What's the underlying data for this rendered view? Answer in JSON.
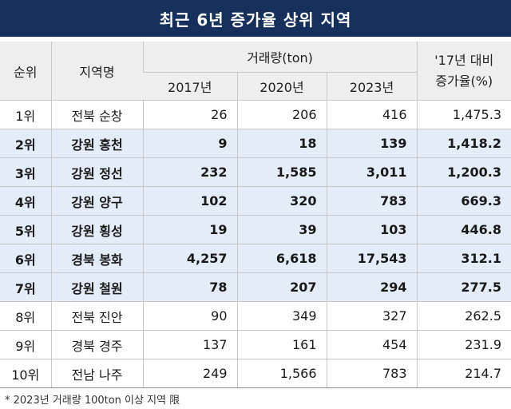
{
  "title": "최근 6년 증가율 상위 지역",
  "headers": {
    "rank": "순위",
    "region": "지역명",
    "volume": "거래량(ton)",
    "years": [
      "2017년",
      "2020년",
      "2023년"
    ],
    "rate_line1": "'17년 대비",
    "rate_line2": "증가율(%)"
  },
  "rows": [
    {
      "rank": "1위",
      "region": "전북 순창",
      "y2017": "26",
      "y2020": "206",
      "y2023": "416",
      "rate": "1,475.3",
      "highlight": false
    },
    {
      "rank": "2위",
      "region": "강원 홍천",
      "y2017": "9",
      "y2020": "18",
      "y2023": "139",
      "rate": "1,418.2",
      "highlight": true
    },
    {
      "rank": "3위",
      "region": "강원 정선",
      "y2017": "232",
      "y2020": "1,585",
      "y2023": "3,011",
      "rate": "1,200.3",
      "highlight": true
    },
    {
      "rank": "4위",
      "region": "강원 양구",
      "y2017": "102",
      "y2020": "320",
      "y2023": "783",
      "rate": "669.3",
      "highlight": true
    },
    {
      "rank": "5위",
      "region": "강원 횡성",
      "y2017": "19",
      "y2020": "39",
      "y2023": "103",
      "rate": "446.8",
      "highlight": true
    },
    {
      "rank": "6위",
      "region": "경북 봉화",
      "y2017": "4,257",
      "y2020": "6,618",
      "y2023": "17,543",
      "rate": "312.1",
      "highlight": true
    },
    {
      "rank": "7위",
      "region": "강원 철원",
      "y2017": "78",
      "y2020": "207",
      "y2023": "294",
      "rate": "277.5",
      "highlight": true
    },
    {
      "rank": "8위",
      "region": "전북 진안",
      "y2017": "90",
      "y2020": "349",
      "y2023": "327",
      "rate": "262.5",
      "highlight": false
    },
    {
      "rank": "9위",
      "region": "경북 경주",
      "y2017": "137",
      "y2020": "161",
      "y2023": "454",
      "rate": "231.9",
      "highlight": false
    },
    {
      "rank": "10위",
      "region": "전남 나주",
      "y2017": "249",
      "y2020": "1,566",
      "y2023": "783",
      "rate": "214.7",
      "highlight": false
    }
  ],
  "footnote": "* 2023년 거래량 100ton 이상 지역 限",
  "colors": {
    "title_bg": "#15305a",
    "highlight_row": "#e3ecf7",
    "header_bg": "#eeeeee"
  }
}
